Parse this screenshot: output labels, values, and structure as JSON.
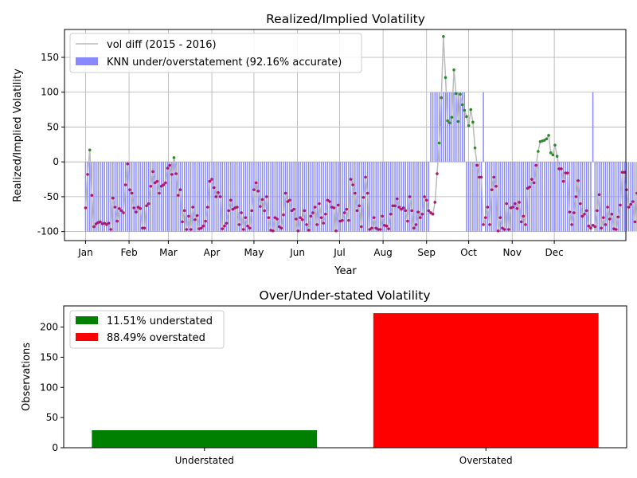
{
  "chart_data": [
    {
      "type": "line",
      "title": "Realized/Implied Volatility",
      "xlabel": "Year",
      "ylabel": "Realized/Implied Volatility",
      "ylim": [
        -113,
        190
      ],
      "xlim": [
        -15,
        385
      ],
      "yticks": [
        -100,
        -50,
        0,
        50,
        100,
        150
      ],
      "xticks": [
        {
          "label": "Jan",
          "x": 0
        },
        {
          "label": "Feb",
          "x": 31
        },
        {
          "label": "Mar",
          "x": 59
        },
        {
          "label": "Apr",
          "x": 90
        },
        {
          "label": "May",
          "x": 120
        },
        {
          "label": "Jun",
          "x": 151
        },
        {
          "label": "Jul",
          "x": 181
        },
        {
          "label": "Aug",
          "x": 212
        },
        {
          "label": "Sep",
          "x": 243
        },
        {
          "label": "Oct",
          "x": 273
        },
        {
          "label": "Nov",
          "x": 304
        },
        {
          "label": "Dec",
          "x": 334
        }
      ],
      "grid": true,
      "legend_position": "top-left",
      "legend": [
        "vol diff (2015 - 2016)",
        "KNN under/overstatement (92.16% accurate)"
      ],
      "colors": {
        "line": "#bbbbbb",
        "bars": "#8888ff",
        "point_overstated": "#b0156a",
        "point_understated": "#2a8a2a"
      },
      "series": [
        {
          "name": "vol diff (2015 - 2016)",
          "values": [
            -66,
            -18,
            17,
            -48,
            -93,
            -89,
            -87,
            -86,
            -89,
            -88,
            -90,
            -88,
            -97,
            -52,
            -65,
            -85,
            -67,
            -70,
            -73,
            -33,
            -3,
            -40,
            -45,
            -66,
            -72,
            -65,
            -67,
            -95,
            -95,
            -63,
            -60,
            -35,
            -14,
            -30,
            -28,
            -45,
            -35,
            -33,
            -30,
            -9,
            -5,
            -18,
            6,
            -17,
            -48,
            -40,
            -86,
            -70,
            -97,
            -78,
            -97,
            -65,
            -83,
            -77,
            -96,
            -95,
            -92,
            -85,
            -65,
            -28,
            -25,
            -37,
            -50,
            -44,
            -50,
            -96,
            -92,
            -88,
            -70,
            -55,
            -68,
            -66,
            -65,
            -90,
            -73,
            -97,
            -80,
            -92,
            -95,
            -70,
            -40,
            -30,
            -42,
            -64,
            -54,
            -70,
            -50,
            -80,
            -98,
            -99,
            -80,
            -82,
            -93,
            -95,
            -76,
            -45,
            -57,
            -55,
            -70,
            -68,
            -82,
            -99,
            -80,
            -83,
            -70,
            -90,
            -98,
            -78,
            -73,
            -65,
            -90,
            -60,
            -80,
            -88,
            -75,
            -55,
            -57,
            -65,
            -66,
            -99,
            -62,
            -85,
            -84,
            -73,
            -68,
            -84,
            -25,
            -33,
            -45,
            -70,
            -63,
            -93,
            -51,
            -22,
            -45,
            -97,
            -95,
            -80,
            -95,
            -97,
            -97,
            -78,
            -91,
            -92,
            -96,
            -75,
            -63,
            -63,
            -53,
            -65,
            -68,
            -66,
            -70,
            -85,
            -50,
            -70,
            -95,
            -90,
            -72,
            -80,
            -75,
            -50,
            -55,
            -70,
            -73,
            -75,
            -58,
            -17,
            27,
            92,
            180,
            121,
            59,
            56,
            64,
            132,
            98,
            58,
            97,
            82,
            74,
            65,
            52,
            75,
            57,
            20,
            -5,
            -22,
            -22,
            -90,
            -80,
            -65,
            -90,
            -40,
            -22,
            -35,
            -99,
            -80,
            -95,
            -97,
            -60,
            -97,
            -66,
            -65,
            -60,
            -67,
            -58,
            -86,
            -78,
            -90,
            -38,
            -36,
            -25,
            -30,
            -5,
            15,
            29,
            30,
            31,
            33,
            38,
            13,
            10,
            24,
            8,
            -10,
            -10,
            -28,
            -16,
            -16,
            -72,
            -90,
            -73,
            -50,
            -27,
            -60,
            -78,
            -75,
            -70,
            -92,
            -95,
            -91,
            -93,
            -70,
            -47,
            -95,
            -80,
            -90,
            -65,
            -82,
            -75,
            -96,
            -97,
            -79,
            -62,
            -15,
            -15,
            -40,
            -65,
            -61,
            -57,
            -86,
            -45,
            -47,
            -50
          ],
          "start_x": 0,
          "step": 1.5
        },
        {
          "name": "KNN under/overstatement (92.16% accurate)",
          "type": "bar",
          "rule": "-100 where predicted overstated, 100 where predicted understated",
          "understated_x": [
            15.5,
            246,
            247.5,
            249,
            250.5,
            252,
            253.5,
            255,
            256.5,
            258,
            259.5,
            261,
            262.5,
            264,
            265.5,
            267,
            268.5,
            270,
            283.5,
            361.5
          ]
        }
      ]
    },
    {
      "type": "bar",
      "title": "Over/Under-stated Volatility",
      "xlabel": "",
      "ylabel": "Observations",
      "categories": [
        "Understated",
        "Overstated"
      ],
      "values": [
        29,
        223
      ],
      "ylim": [
        0,
        235
      ],
      "yticks": [
        0,
        50,
        100,
        150,
        200
      ],
      "colors": [
        "#008000",
        "#ff0000"
      ],
      "legend_position": "top-left",
      "legend": [
        "11.51% understated",
        "88.49% overstated"
      ]
    }
  ]
}
